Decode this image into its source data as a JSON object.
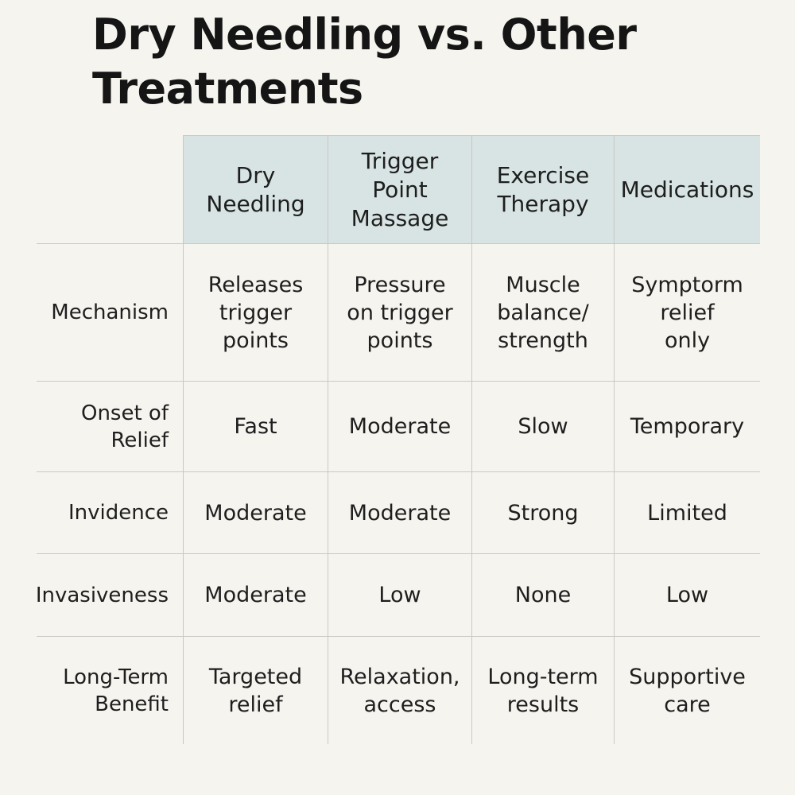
{
  "title": "Dry Needling vs. Other Treatments",
  "table": {
    "columns": [
      "Dry\nNeedling",
      "Trigger\nPoint\nMassage",
      "Exercise\nTherapy",
      "Medications"
    ],
    "rows": [
      {
        "label": "Mechanism",
        "cells": [
          "Releases\ntrigger\npoints",
          "Pressure\non trigger\npoints",
          "Muscle\nbalance/\nstrength",
          "Symptorm\nrelief\nonly"
        ]
      },
      {
        "label": "Onset of\nRelief",
        "cells": [
          "Fast",
          "Moderate",
          "Slow",
          "Temporary"
        ]
      },
      {
        "label": "Invidence",
        "cells": [
          "Moderate",
          "Moderate",
          "Strong",
          "Limited"
        ]
      },
      {
        "label": "Invasiveness",
        "cells": [
          "Moderate",
          "Low",
          "None",
          "Low"
        ]
      },
      {
        "label": "Long-Term\nBenefit",
        "cells": [
          "Targeted\nrelief",
          "Relaxation,\naccess",
          "Long-term\nresults",
          "Supportive\ncare"
        ]
      }
    ]
  },
  "colors": {
    "background": "#f6f4ef",
    "header_fill": "#d8e3e3",
    "grid_line": "#c9c9c4",
    "text": "#1e1e1e"
  }
}
